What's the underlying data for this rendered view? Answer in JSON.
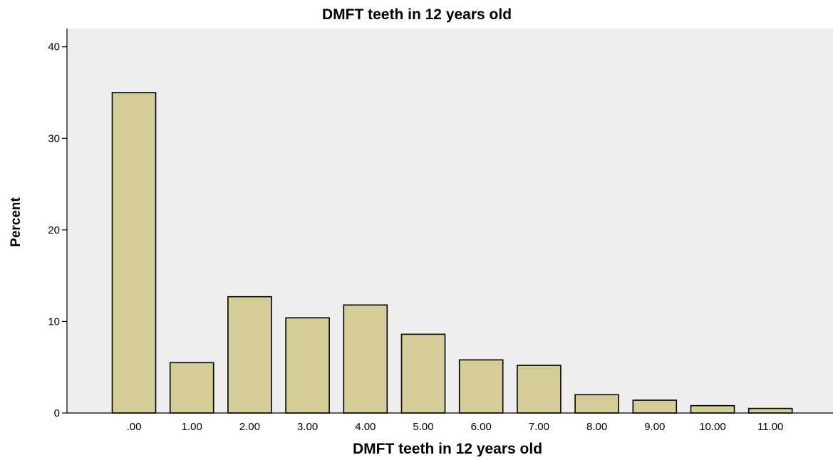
{
  "chart_data": {
    "type": "bar",
    "title": "DMFT teeth in 12 years old",
    "xlabel": "DMFT teeth in 12 years old",
    "ylabel": "Percent",
    "categories": [
      ".00",
      "1.00",
      "2.00",
      "3.00",
      "4.00",
      "5.00",
      "6.00",
      "7.00",
      "8.00",
      "9.00",
      "10.00",
      "11.00"
    ],
    "values": [
      35.0,
      5.5,
      12.7,
      10.4,
      11.8,
      8.6,
      5.8,
      5.2,
      2.0,
      1.4,
      0.8,
      0.5
    ],
    "ylim": [
      0,
      42
    ],
    "yticks": [
      0,
      10,
      20,
      30,
      40
    ],
    "ytick_labels": [
      "0",
      "10",
      "20",
      "30",
      "40"
    ],
    "grid": false,
    "legend": "none",
    "colors": {
      "bar_fill": "#d4cd97",
      "bar_stroke": "#000000",
      "plot_background": "#eeeeee",
      "axis": "#000000"
    }
  }
}
